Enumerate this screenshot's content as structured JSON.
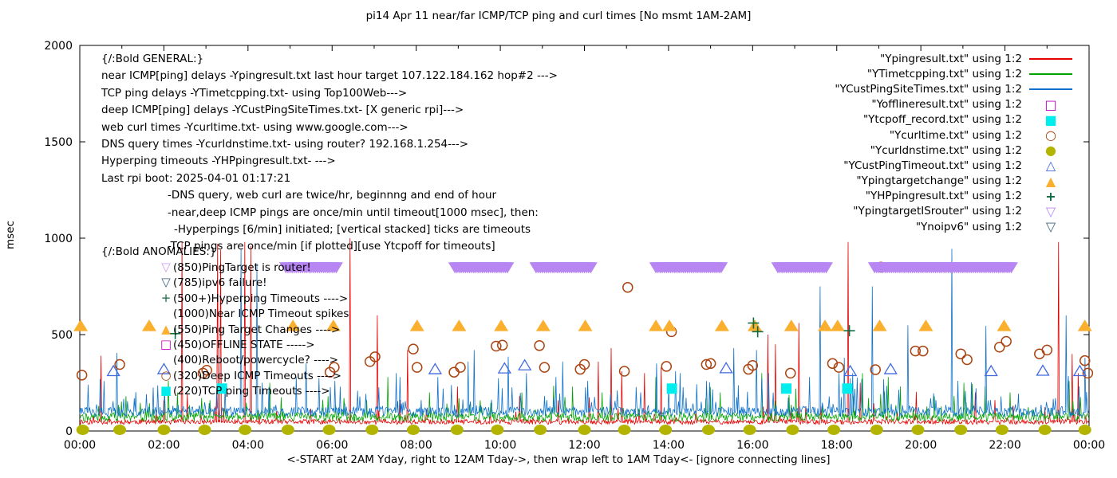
{
  "chart_data": {
    "type": "line",
    "title": "pi14 Apr 11  near/far ICMP/TCP ping and curl times [No msmt 1AM-2AM]",
    "xlabel": "<-START at 2AM Yday, right to 12AM Tday->, then wrap left to 1AM Tday<- [ignore connecting lines]",
    "ylabel": "msec",
    "ylim": [
      0,
      2000
    ],
    "x_range_hours": [
      0,
      24
    ],
    "y_ticks": [
      0,
      500,
      1000,
      1500,
      2000
    ],
    "x_tick_hours": [
      0,
      2,
      4,
      6,
      8,
      10,
      12,
      14,
      16,
      18,
      20,
      22,
      24
    ],
    "x_tick_labels": [
      "00:00",
      "02:00",
      "04:00",
      "06:00",
      "08:00",
      "10:00",
      "12:00",
      "14:00",
      "16:00",
      "18:00",
      "20:00",
      "22:00",
      "00:00"
    ],
    "minor_x_tick_hours": [
      1,
      3,
      5,
      7,
      9,
      11,
      13,
      15,
      17,
      19,
      21,
      23
    ],
    "legend_position": "top-right",
    "grid": false,
    "series": [
      {
        "name": "Ypingresult",
        "legend_label": "\"Ypingresult.txt\" using 1:2",
        "type": "noisy-line",
        "color": "#e60000",
        "base": 45,
        "noise": 26,
        "burst_prob": 0.05,
        "burst": 170,
        "seed": 11,
        "spikes": [
          [
            0.5,
            390
          ],
          [
            2.43,
            980
          ],
          [
            3.27,
            970
          ],
          [
            3.35,
            940
          ],
          [
            3.93,
            980
          ],
          [
            4.06,
            960
          ],
          [
            6.42,
            1000
          ],
          [
            7.08,
            600
          ],
          [
            7.79,
            420
          ],
          [
            8.98,
            230
          ],
          [
            12.33,
            360
          ],
          [
            12.63,
            430
          ],
          [
            12.88,
            310
          ],
          [
            13.42,
            300
          ],
          [
            13.83,
            330
          ],
          [
            16.37,
            500
          ],
          [
            16.55,
            450
          ],
          [
            17.1,
            560
          ],
          [
            18.27,
            980
          ],
          [
            18.55,
            250
          ],
          [
            21.3,
            200
          ],
          [
            23.28,
            980
          ],
          [
            23.6,
            400
          ],
          [
            23.75,
            300
          ]
        ]
      },
      {
        "name": "YTimetcpping",
        "legend_label": "\"YTimetcpping.txt\" using 1:2",
        "type": "noisy-line",
        "color": "#00a400",
        "base": 68,
        "noise": 44,
        "burst_prob": 0.1,
        "burst": 200,
        "seed": 22,
        "spikes": [
          [
            1.1,
            180
          ],
          [
            2.32,
            200
          ],
          [
            3.1,
            160
          ],
          [
            4.52,
            250
          ],
          [
            5.9,
            180
          ],
          [
            6.82,
            160
          ],
          [
            7.32,
            280
          ],
          [
            8.32,
            200
          ],
          [
            9.02,
            170
          ],
          [
            10.52,
            200
          ],
          [
            11.72,
            230
          ],
          [
            12.42,
            200
          ],
          [
            13.7,
            280
          ],
          [
            15.22,
            200
          ],
          [
            16.22,
            300
          ],
          [
            17.02,
            220
          ],
          [
            18.62,
            300
          ],
          [
            19.22,
            280
          ],
          [
            20.32,
            180
          ],
          [
            21.02,
            250
          ],
          [
            22.12,
            200
          ],
          [
            23.52,
            260
          ]
        ]
      },
      {
        "name": "YCustPingSiteTimes",
        "legend_label": "\"YCustPingSiteTimes.txt\" using 1:2",
        "type": "noisy-line",
        "color": "#0e72cc",
        "base": 95,
        "noise": 52,
        "burst_prob": 0.16,
        "burst": 240,
        "seed": 33,
        "spikes": [
          [
            0.2,
            240
          ],
          [
            0.48,
            270
          ],
          [
            0.58,
            260
          ],
          [
            0.88,
            405
          ],
          [
            2.02,
            210
          ],
          [
            3.83,
            945
          ],
          [
            4.22,
            870
          ],
          [
            4.33,
            250
          ],
          [
            5.15,
            280
          ],
          [
            5.38,
            350
          ],
          [
            6.07,
            260
          ],
          [
            7.52,
            300
          ],
          [
            7.62,
            280
          ],
          [
            8.52,
            280
          ],
          [
            9.23,
            360
          ],
          [
            9.37,
            420
          ],
          [
            10.18,
            385
          ],
          [
            10.62,
            300
          ],
          [
            11.32,
            280
          ],
          [
            11.48,
            360
          ],
          [
            12.08,
            260
          ],
          [
            13.72,
            350
          ],
          [
            14.17,
            310
          ],
          [
            14.27,
            300
          ],
          [
            14.9,
            260
          ],
          [
            15.55,
            430
          ],
          [
            16.1,
            420
          ],
          [
            16.38,
            300
          ],
          [
            17.35,
            280
          ],
          [
            17.6,
            750
          ],
          [
            18.05,
            300
          ],
          [
            18.18,
            380
          ],
          [
            18.38,
            300
          ],
          [
            18.85,
            750
          ],
          [
            19.7,
            548
          ],
          [
            20.74,
            945
          ],
          [
            21.55,
            545
          ],
          [
            23.45,
            600
          ],
          [
            23.9,
            380
          ]
        ]
      },
      {
        "name": "Yofflineresult",
        "legend_label": "\"Yofflineresult.txt\" using 1:2",
        "type": "points",
        "marker": "square-open",
        "color": "#bf00bf",
        "points": []
      },
      {
        "name": "Ytcpoff_record",
        "legend_label": "\"Ytcpoff_record.txt\" using 1:2",
        "type": "points",
        "marker": "square-fill",
        "color": "#00eded",
        "points": [
          [
            3.38,
            220
          ],
          [
            14.08,
            220
          ],
          [
            16.8,
            220
          ],
          [
            18.25,
            220
          ]
        ]
      },
      {
        "name": "Ycurltime",
        "legend_label": "\"Ycurltime.txt\" using 1:2",
        "type": "points",
        "marker": "circle-open",
        "color": "#aa4411",
        "points": [
          [
            0.05,
            290
          ],
          [
            0.95,
            345
          ],
          [
            2.93,
            300
          ],
          [
            3.02,
            315
          ],
          [
            5.95,
            305
          ],
          [
            6.05,
            330
          ],
          [
            6.9,
            360
          ],
          [
            7.02,
            385
          ],
          [
            7.93,
            425
          ],
          [
            8.02,
            330
          ],
          [
            8.9,
            305
          ],
          [
            9.05,
            330
          ],
          [
            9.9,
            440
          ],
          [
            10.05,
            445
          ],
          [
            10.93,
            443
          ],
          [
            11.05,
            330
          ],
          [
            11.9,
            320
          ],
          [
            12.0,
            345
          ],
          [
            12.95,
            310
          ],
          [
            13.03,
            745
          ],
          [
            13.95,
            335
          ],
          [
            14.07,
            515
          ],
          [
            14.9,
            345
          ],
          [
            15.0,
            350
          ],
          [
            15.9,
            320
          ],
          [
            16.0,
            340
          ],
          [
            16.9,
            300
          ],
          [
            17.9,
            350
          ],
          [
            18.05,
            330
          ],
          [
            18.92,
            318
          ],
          [
            19.05,
            850
          ],
          [
            19.87,
            415
          ],
          [
            20.05,
            415
          ],
          [
            20.95,
            400
          ],
          [
            21.1,
            370
          ],
          [
            21.87,
            435
          ],
          [
            22.03,
            465
          ],
          [
            22.82,
            400
          ],
          [
            23.0,
            420
          ],
          [
            23.9,
            365
          ],
          [
            23.97,
            300
          ]
        ]
      },
      {
        "name": "Ycurldnstime",
        "legend_label": "\"Ycurldnstime.txt\" using 1:2",
        "type": "points",
        "marker": "circle-fill",
        "color": "#b3b400",
        "points": [
          [
            0.07,
            6
          ],
          [
            0.95,
            6
          ],
          [
            2.0,
            6
          ],
          [
            2.97,
            6
          ],
          [
            3.93,
            6
          ],
          [
            4.95,
            6
          ],
          [
            5.93,
            6
          ],
          [
            6.95,
            6
          ],
          [
            7.93,
            6
          ],
          [
            8.97,
            6
          ],
          [
            9.93,
            6
          ],
          [
            10.95,
            6
          ],
          [
            12.0,
            6
          ],
          [
            12.95,
            6
          ],
          [
            13.93,
            6
          ],
          [
            14.95,
            6
          ],
          [
            15.93,
            6
          ],
          [
            16.95,
            6
          ],
          [
            17.93,
            6
          ],
          [
            18.95,
            6
          ],
          [
            19.93,
            6
          ],
          [
            20.95,
            6
          ],
          [
            21.93,
            6
          ],
          [
            22.95,
            6
          ],
          [
            23.9,
            6
          ]
        ]
      },
      {
        "name": "YCustPingTimeout",
        "legend_label": "\"YCustPingTimeout.txt\" using 1:2",
        "type": "points",
        "marker": "triangle-open",
        "color": "#4169e1",
        "points": [
          [
            0.8,
            310
          ],
          [
            2.0,
            320
          ],
          [
            8.45,
            320
          ],
          [
            10.1,
            324
          ],
          [
            10.58,
            340
          ],
          [
            15.37,
            325
          ],
          [
            18.32,
            310
          ],
          [
            19.28,
            320
          ],
          [
            21.67,
            310
          ],
          [
            22.9,
            312
          ],
          [
            23.78,
            310
          ]
        ]
      },
      {
        "name": "Ypingtargetchange",
        "legend_label": "\"Ypingtargetchange\" using 1:2",
        "type": "points",
        "marker": "triangle-fill",
        "color": "#fbaf2e",
        "points": [
          [
            0.02,
            545
          ],
          [
            1.65,
            545
          ],
          [
            5.07,
            545
          ],
          [
            6.03,
            545
          ],
          [
            8.02,
            545
          ],
          [
            9.02,
            545
          ],
          [
            10.02,
            545
          ],
          [
            11.02,
            545
          ],
          [
            12.02,
            545
          ],
          [
            13.7,
            545
          ],
          [
            14.02,
            545
          ],
          [
            15.27,
            545
          ],
          [
            16.05,
            545
          ],
          [
            16.92,
            545
          ],
          [
            17.72,
            545
          ],
          [
            18.02,
            545
          ],
          [
            19.02,
            545
          ],
          [
            20.12,
            545
          ],
          [
            21.98,
            545
          ],
          [
            23.9,
            545
          ]
        ]
      },
      {
        "name": "YHPpingresult",
        "legend_label": "\"YHPpingresult.txt\" using 1:2",
        "type": "points",
        "marker": "plus",
        "color": "#0e6b40",
        "points": [
          [
            2.27,
            505
          ],
          [
            16.02,
            560
          ],
          [
            16.12,
            515
          ],
          [
            18.3,
            520
          ]
        ]
      },
      {
        "name": "YpingtargetISrouter",
        "legend_label": "\"YpingtargetISrouter\" using 1:2",
        "type": "triangle-band",
        "marker": "triangle-down-open",
        "color": "#b886f2",
        "band_value": 850,
        "ranges": [
          [
            4.9,
            6.13
          ],
          [
            8.92,
            10.19
          ],
          [
            10.85,
            12.18
          ],
          [
            13.7,
            15.3
          ],
          [
            16.6,
            17.8
          ],
          [
            18.9,
            22.2
          ]
        ]
      },
      {
        "name": "Ynoipv6",
        "legend_label": "\"Ynoipv6\" using 1:2",
        "type": "points",
        "marker": "triangle-down-open",
        "color": "#37657e",
        "points": []
      }
    ]
  },
  "annotations": {
    "general": {
      "heading": "{/:Bold GENERAL:}",
      "lines": [
        {
          "indent": 0,
          "text": "near ICMP[ping] delays -Ypingresult.txt last hour target 107.122.184.162 hop#2 --->"
        },
        {
          "indent": 0,
          "text": "TCP ping delays -YTimetcpping.txt- using Top100Web--->"
        },
        {
          "indent": 0,
          "text": "deep ICMP[ping] delays -YCustPingSiteTimes.txt- [X generic rpi]--->"
        },
        {
          "indent": 0,
          "text": "web curl times -Ycurltime.txt- using www.google.com--->"
        },
        {
          "indent": 0,
          "text": "DNS query times -Ycurldnstime.txt- using router? 192.168.1.254--->"
        },
        {
          "indent": 0,
          "text": "Hyperping timeouts -YHPpingresult.txt- --->"
        },
        {
          "indent": 0,
          "text": "Last rpi boot: 2025-04-01 01:17:21"
        },
        {
          "indent": 1,
          "text": "-DNS query, web curl are twice/hr, beginnng and end of hour"
        },
        {
          "indent": 1,
          "text": "-near,deep ICMP pings are once/min until timeout[1000 msec], then:"
        },
        {
          "indent": 2,
          "text": "-Hyperpings [6/min] initiated; [vertical stacked] ticks are timeouts"
        },
        {
          "indent": 1,
          "text": "-TCP pings are once/min [if plotted][use Ytcpoff for timeouts]"
        }
      ]
    },
    "anomalies": {
      "heading": "{/:Bold ANOMALIES:}",
      "items": [
        {
          "glyph": "▽",
          "color": "#cf9bf5",
          "text": "(850)PingTarget is router!"
        },
        {
          "glyph": "▽",
          "color": "#37657e",
          "text": "(785)ipv6 failure!"
        },
        {
          "glyph": "+",
          "color": "#0e6b40",
          "text": "(500+)Hyperping Timeouts ---->"
        },
        {
          "glyph": "",
          "color": "",
          "text": "(1000)Near ICMP Timeout spikes"
        },
        {
          "glyph": "▲",
          "color": "#fbaf2e",
          "text": "(550)Ping Target Changes ---->"
        },
        {
          "glyph": "□",
          "color": "#bf00bf",
          "text": "(450)OFFLINE STATE ----->"
        },
        {
          "glyph": "",
          "color": "",
          "text": "(400)Reboot/powercycle? ---->"
        },
        {
          "glyph": "○",
          "color": "#aa4411",
          "text": "(320)Deep ICMP Timeouts ---->"
        },
        {
          "glyph": "■",
          "color": "#00eded",
          "text": "(220)TCP ping Timeouts ---->"
        }
      ]
    }
  }
}
